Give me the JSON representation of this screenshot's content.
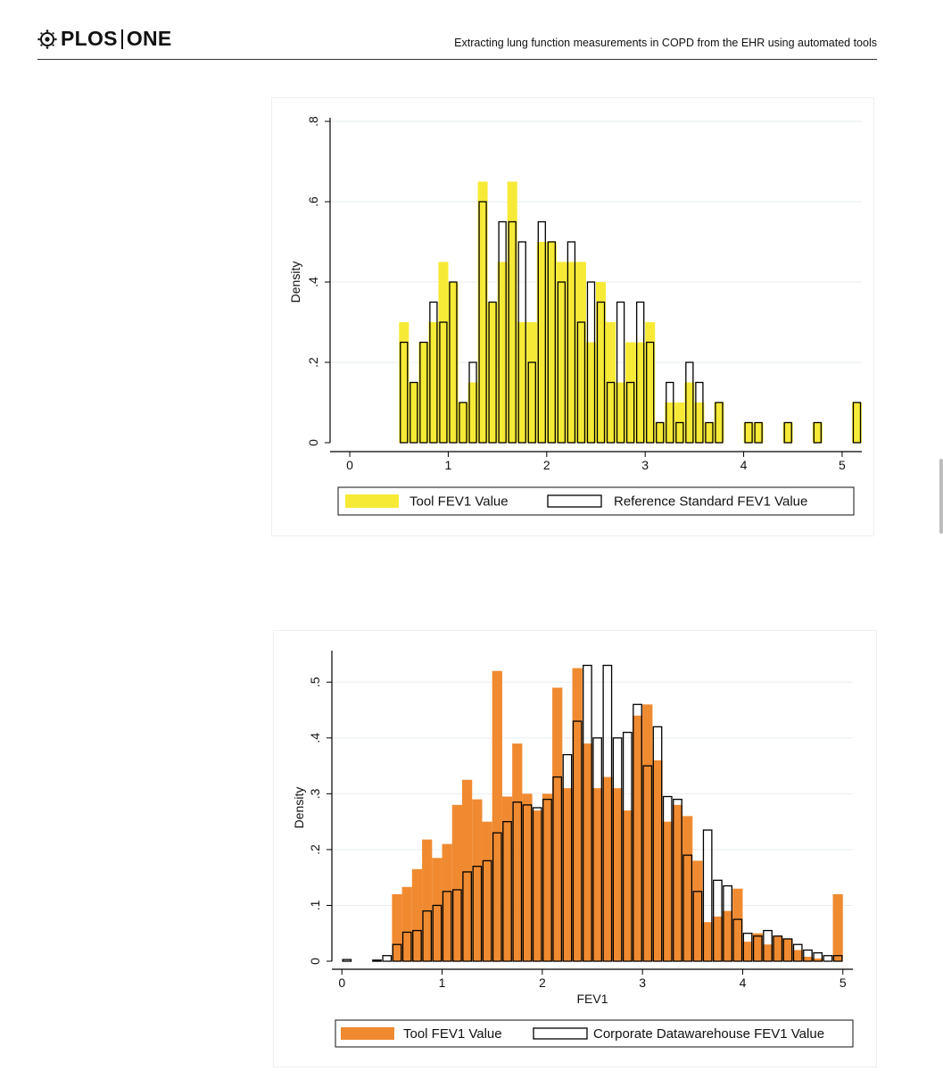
{
  "header": {
    "journal_name_left": "PLOS",
    "journal_name_right": "ONE",
    "running_title": "Extracting lung function measurements in COPD from the EHR using automated tools"
  },
  "colors": {
    "tool_fill_yellow": "#f7ea36",
    "tool_fill_orange": "#f08a30",
    "outline": "#000000",
    "grid": "#e7eef2",
    "frame": "#eeeeee"
  },
  "chart_data": [
    {
      "type": "histogram",
      "ylabel": "Density",
      "xlabel": "",
      "xlim": [
        -0.2,
        5.2
      ],
      "ylim": [
        0,
        0.8
      ],
      "x_ticks": [
        0,
        1,
        2,
        3,
        4,
        5
      ],
      "y_ticks": [
        0,
        0.2,
        0.4,
        0.6,
        0.8
      ],
      "x_tick_labels": [
        "0",
        "1",
        "2",
        "3",
        "4",
        "5"
      ],
      "y_tick_labels": [
        "0",
        ".2",
        ".4",
        ".6",
        ".8"
      ],
      "grid": true,
      "legend_position": "bottom",
      "bin_start": 0.5,
      "bin_width": 0.1,
      "series": [
        {
          "name": "Tool FEV1 Value",
          "style": "filled",
          "values": [
            0.3,
            0.15,
            0.25,
            0.3,
            0.45,
            0.4,
            0.1,
            0.15,
            0.65,
            0.35,
            0.45,
            0.65,
            0.3,
            0.3,
            0.5,
            0.5,
            0.45,
            0.45,
            0.45,
            0.25,
            0.4,
            0.3,
            0.15,
            0.25,
            0.25,
            0.3,
            0.05,
            0.1,
            0.1,
            0.15,
            0.1,
            0.05,
            0.1,
            0.0,
            0.0,
            0.05,
            0.05,
            0.0,
            0.0,
            0.05,
            0.0,
            0.0,
            0.05,
            0.0,
            0.0,
            0.0,
            0.1
          ]
        },
        {
          "name": "Reference Standard FEV1 Value",
          "style": "outline",
          "values": [
            0.25,
            0.15,
            0.25,
            0.35,
            0.3,
            0.4,
            0.1,
            0.2,
            0.6,
            0.35,
            0.55,
            0.55,
            0.5,
            0.2,
            0.55,
            0.5,
            0.4,
            0.5,
            0.3,
            0.4,
            0.35,
            0.15,
            0.35,
            0.15,
            0.35,
            0.25,
            0.05,
            0.15,
            0.05,
            0.2,
            0.15,
            0.05,
            0.1,
            0.0,
            0.0,
            0.05,
            0.05,
            0.0,
            0.0,
            0.05,
            0.0,
            0.0,
            0.05,
            0.0,
            0.0,
            0.0,
            0.1
          ]
        }
      ]
    },
    {
      "type": "histogram",
      "ylabel": "Density",
      "xlabel": "FEV1",
      "xlim": [
        -0.1,
        5.1
      ],
      "ylim": [
        0,
        0.55
      ],
      "x_ticks": [
        0,
        1,
        2,
        3,
        4,
        5
      ],
      "y_ticks": [
        0,
        0.1,
        0.2,
        0.3,
        0.4,
        0.5
      ],
      "x_tick_labels": [
        "0",
        "1",
        "2",
        "3",
        "4",
        "5"
      ],
      "y_tick_labels": [
        "0",
        ".1",
        ".2",
        ".3",
        ".4",
        ".5"
      ],
      "grid": true,
      "legend_position": "bottom",
      "bin_start": 0.0,
      "bin_width": 0.1,
      "series": [
        {
          "name": "Tool FEV1 Value",
          "style": "filled",
          "values": [
            0.0,
            0.0,
            0.0,
            0.0,
            0.0,
            0.12,
            0.133,
            0.165,
            0.218,
            0.185,
            0.21,
            0.28,
            0.325,
            0.29,
            0.25,
            0.52,
            0.295,
            0.39,
            0.3,
            0.27,
            0.3,
            0.49,
            0.31,
            0.525,
            0.39,
            0.31,
            0.33,
            0.31,
            0.27,
            0.44,
            0.46,
            0.36,
            0.25,
            0.28,
            0.26,
            0.18,
            0.07,
            0.08,
            0.09,
            0.13,
            0.035,
            0.05,
            0.03,
            0.045,
            0.04,
            0.02,
            0.008,
            0.005,
            0.0,
            0.12
          ]
        },
        {
          "name": "Corporate Datawarehouse FEV1 Value",
          "style": "outline",
          "values": [
            0.003,
            0.0,
            0.0,
            0.002,
            0.01,
            0.03,
            0.052,
            0.055,
            0.09,
            0.1,
            0.125,
            0.128,
            0.16,
            0.17,
            0.18,
            0.23,
            0.25,
            0.285,
            0.28,
            0.275,
            0.29,
            0.33,
            0.37,
            0.43,
            0.53,
            0.4,
            0.53,
            0.4,
            0.41,
            0.46,
            0.35,
            0.42,
            0.295,
            0.29,
            0.19,
            0.125,
            0.235,
            0.145,
            0.135,
            0.075,
            0.05,
            0.045,
            0.055,
            0.045,
            0.04,
            0.03,
            0.02,
            0.015,
            0.01,
            0.01
          ]
        }
      ]
    }
  ]
}
